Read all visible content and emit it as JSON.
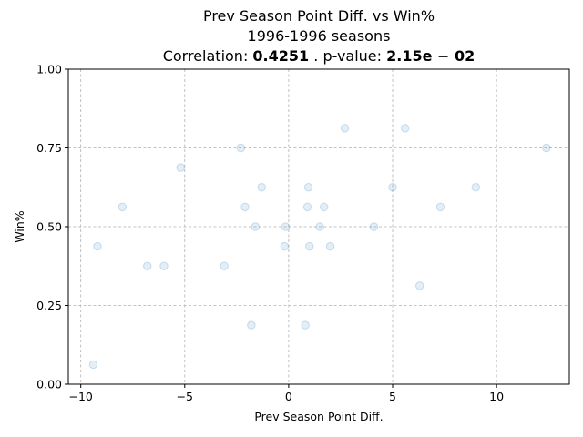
{
  "chart_data": {
    "type": "scatter",
    "title": {
      "line1": "Prev Season Point Diff. vs Win%",
      "line2": "1996-1996 seasons",
      "corr_prefix": "Correlation: ",
      "corr_value": "0.4251",
      "pval_prefix": ". p-value: ",
      "pval_value": "2.15e − 02"
    },
    "xlabel": "Prev Season Point Diff.",
    "ylabel": "Win%",
    "xlim": [
      -10.6,
      13.5
    ],
    "ylim": [
      0.0,
      1.0
    ],
    "xticks": [
      -10,
      -5,
      0,
      5,
      10
    ],
    "xtick_labels": [
      "−10",
      "−5",
      "0",
      "5",
      "10"
    ],
    "yticks": [
      0.0,
      0.25,
      0.5,
      0.75,
      1.0
    ],
    "ytick_labels": [
      "0.00",
      "0.25",
      "0.50",
      "0.75",
      "1.00"
    ],
    "grid": true,
    "point_color": "#1f77b4",
    "points": [
      {
        "x": -9.4,
        "y": 0.0625
      },
      {
        "x": -9.2,
        "y": 0.4375
      },
      {
        "x": -8.0,
        "y": 0.5625
      },
      {
        "x": -6.8,
        "y": 0.375
      },
      {
        "x": -6.0,
        "y": 0.375
      },
      {
        "x": -5.2,
        "y": 0.6875
      },
      {
        "x": -3.1,
        "y": 0.375
      },
      {
        "x": -2.3,
        "y": 0.75
      },
      {
        "x": -2.1,
        "y": 0.5625
      },
      {
        "x": -1.8,
        "y": 0.1875
      },
      {
        "x": -1.6,
        "y": 0.5
      },
      {
        "x": -1.3,
        "y": 0.625
      },
      {
        "x": -0.2,
        "y": 0.4375
      },
      {
        "x": -0.15,
        "y": 0.5
      },
      {
        "x": 0.8,
        "y": 0.1875
      },
      {
        "x": 0.9,
        "y": 0.5625
      },
      {
        "x": 0.95,
        "y": 0.625
      },
      {
        "x": 1.0,
        "y": 0.4375
      },
      {
        "x": 1.5,
        "y": 0.5
      },
      {
        "x": 1.7,
        "y": 0.5625
      },
      {
        "x": 2.0,
        "y": 0.4375
      },
      {
        "x": 2.7,
        "y": 0.8125
      },
      {
        "x": 4.1,
        "y": 0.5
      },
      {
        "x": 5.0,
        "y": 0.625
      },
      {
        "x": 5.6,
        "y": 0.8125
      },
      {
        "x": 6.3,
        "y": 0.3125
      },
      {
        "x": 7.3,
        "y": 0.5625
      },
      {
        "x": 9.0,
        "y": 0.625
      },
      {
        "x": 12.4,
        "y": 0.75
      }
    ]
  }
}
